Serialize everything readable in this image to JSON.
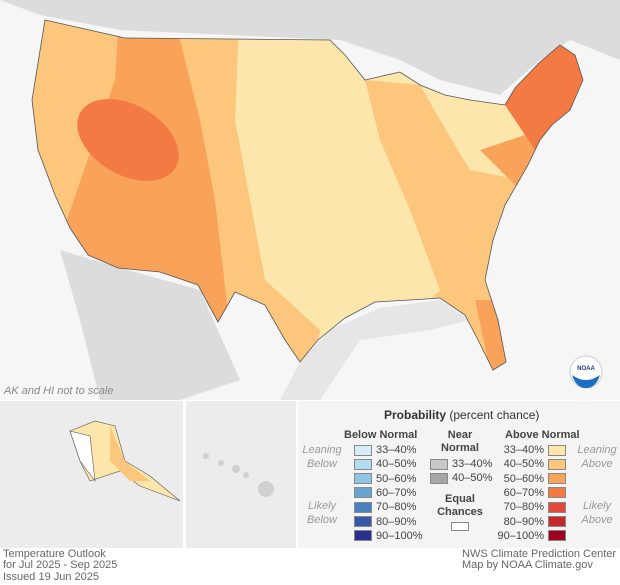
{
  "map_note": "AK and HI not to scale",
  "footer": {
    "title": "Temperature Outlook",
    "period": "for Jul 2025 - Sep 2025",
    "issued": "Issued 19 Jun 2025",
    "source": "NWS Climate Prediction Center",
    "credit": "Map by NOAA Climate.gov"
  },
  "logo": "NOAA",
  "legend": {
    "title": "Probability",
    "subtitle": "(percent chance)",
    "below_header": "Below Normal",
    "near_header": "Near Normal",
    "above_header": "Above Normal",
    "leaning_below": "Leaning Below",
    "likely_below": "Likely Below",
    "leaning_above": "Leaning Above",
    "likely_above": "Likely Above",
    "equal_chances": "Equal Chances",
    "below": [
      {
        "label": "33–40%",
        "color": "#d6eef8"
      },
      {
        "label": "40–50%",
        "color": "#b3dcee"
      },
      {
        "label": "50–60%",
        "color": "#8ec5e2"
      },
      {
        "label": "60–70%",
        "color": "#66a5cf"
      },
      {
        "label": "70–80%",
        "color": "#4a80c0"
      },
      {
        "label": "80–90%",
        "color": "#3558a8"
      },
      {
        "label": "90–100%",
        "color": "#2a2f8e"
      }
    ],
    "near": [
      {
        "label": "33–40%",
        "color": "#c8c8c8"
      },
      {
        "label": "40–50%",
        "color": "#a6a6a6"
      }
    ],
    "above": [
      {
        "label": "33–40%",
        "color": "#fde6ab"
      },
      {
        "label": "40–50%",
        "color": "#fcc67c"
      },
      {
        "label": "50–60%",
        "color": "#f9a35a"
      },
      {
        "label": "60–70%",
        "color": "#f47a44"
      },
      {
        "label": "70–80%",
        "color": "#e4483a"
      },
      {
        "label": "80–90%",
        "color": "#c8282a"
      },
      {
        "label": "90–100%",
        "color": "#a00020"
      }
    ]
  }
}
